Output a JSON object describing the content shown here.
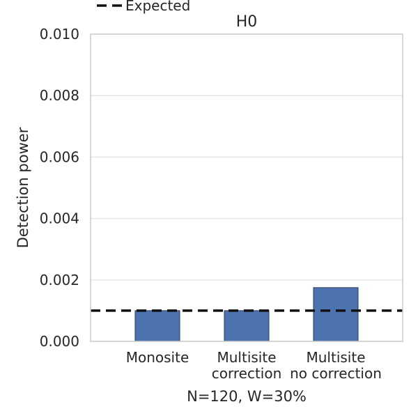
{
  "chart_data": {
    "type": "bar",
    "title": "H0",
    "xlabel": "N=120, W=30%",
    "ylabel": "Detection power",
    "categories": [
      [
        "Monosite"
      ],
      [
        "Multisite",
        "correction"
      ],
      [
        "Multisite",
        "no correction"
      ]
    ],
    "values": [
      0.001,
      0.001,
      0.00175
    ],
    "ylim": [
      0,
      0.01
    ],
    "yticks": [
      "0.000",
      "0.002",
      "0.004",
      "0.006",
      "0.008",
      "0.010"
    ],
    "grid": true,
    "reference_line": {
      "label": "Expected",
      "value": 0.001,
      "style": "dashed"
    },
    "legend": {
      "placement": "top-left",
      "entries": [
        "Expected"
      ]
    },
    "colors": {
      "bar": "#4c72b0",
      "bar_edge": "#2f3d57",
      "reference": "#111111",
      "grid": "#e5e5e5",
      "spine": "#cccccc"
    }
  }
}
